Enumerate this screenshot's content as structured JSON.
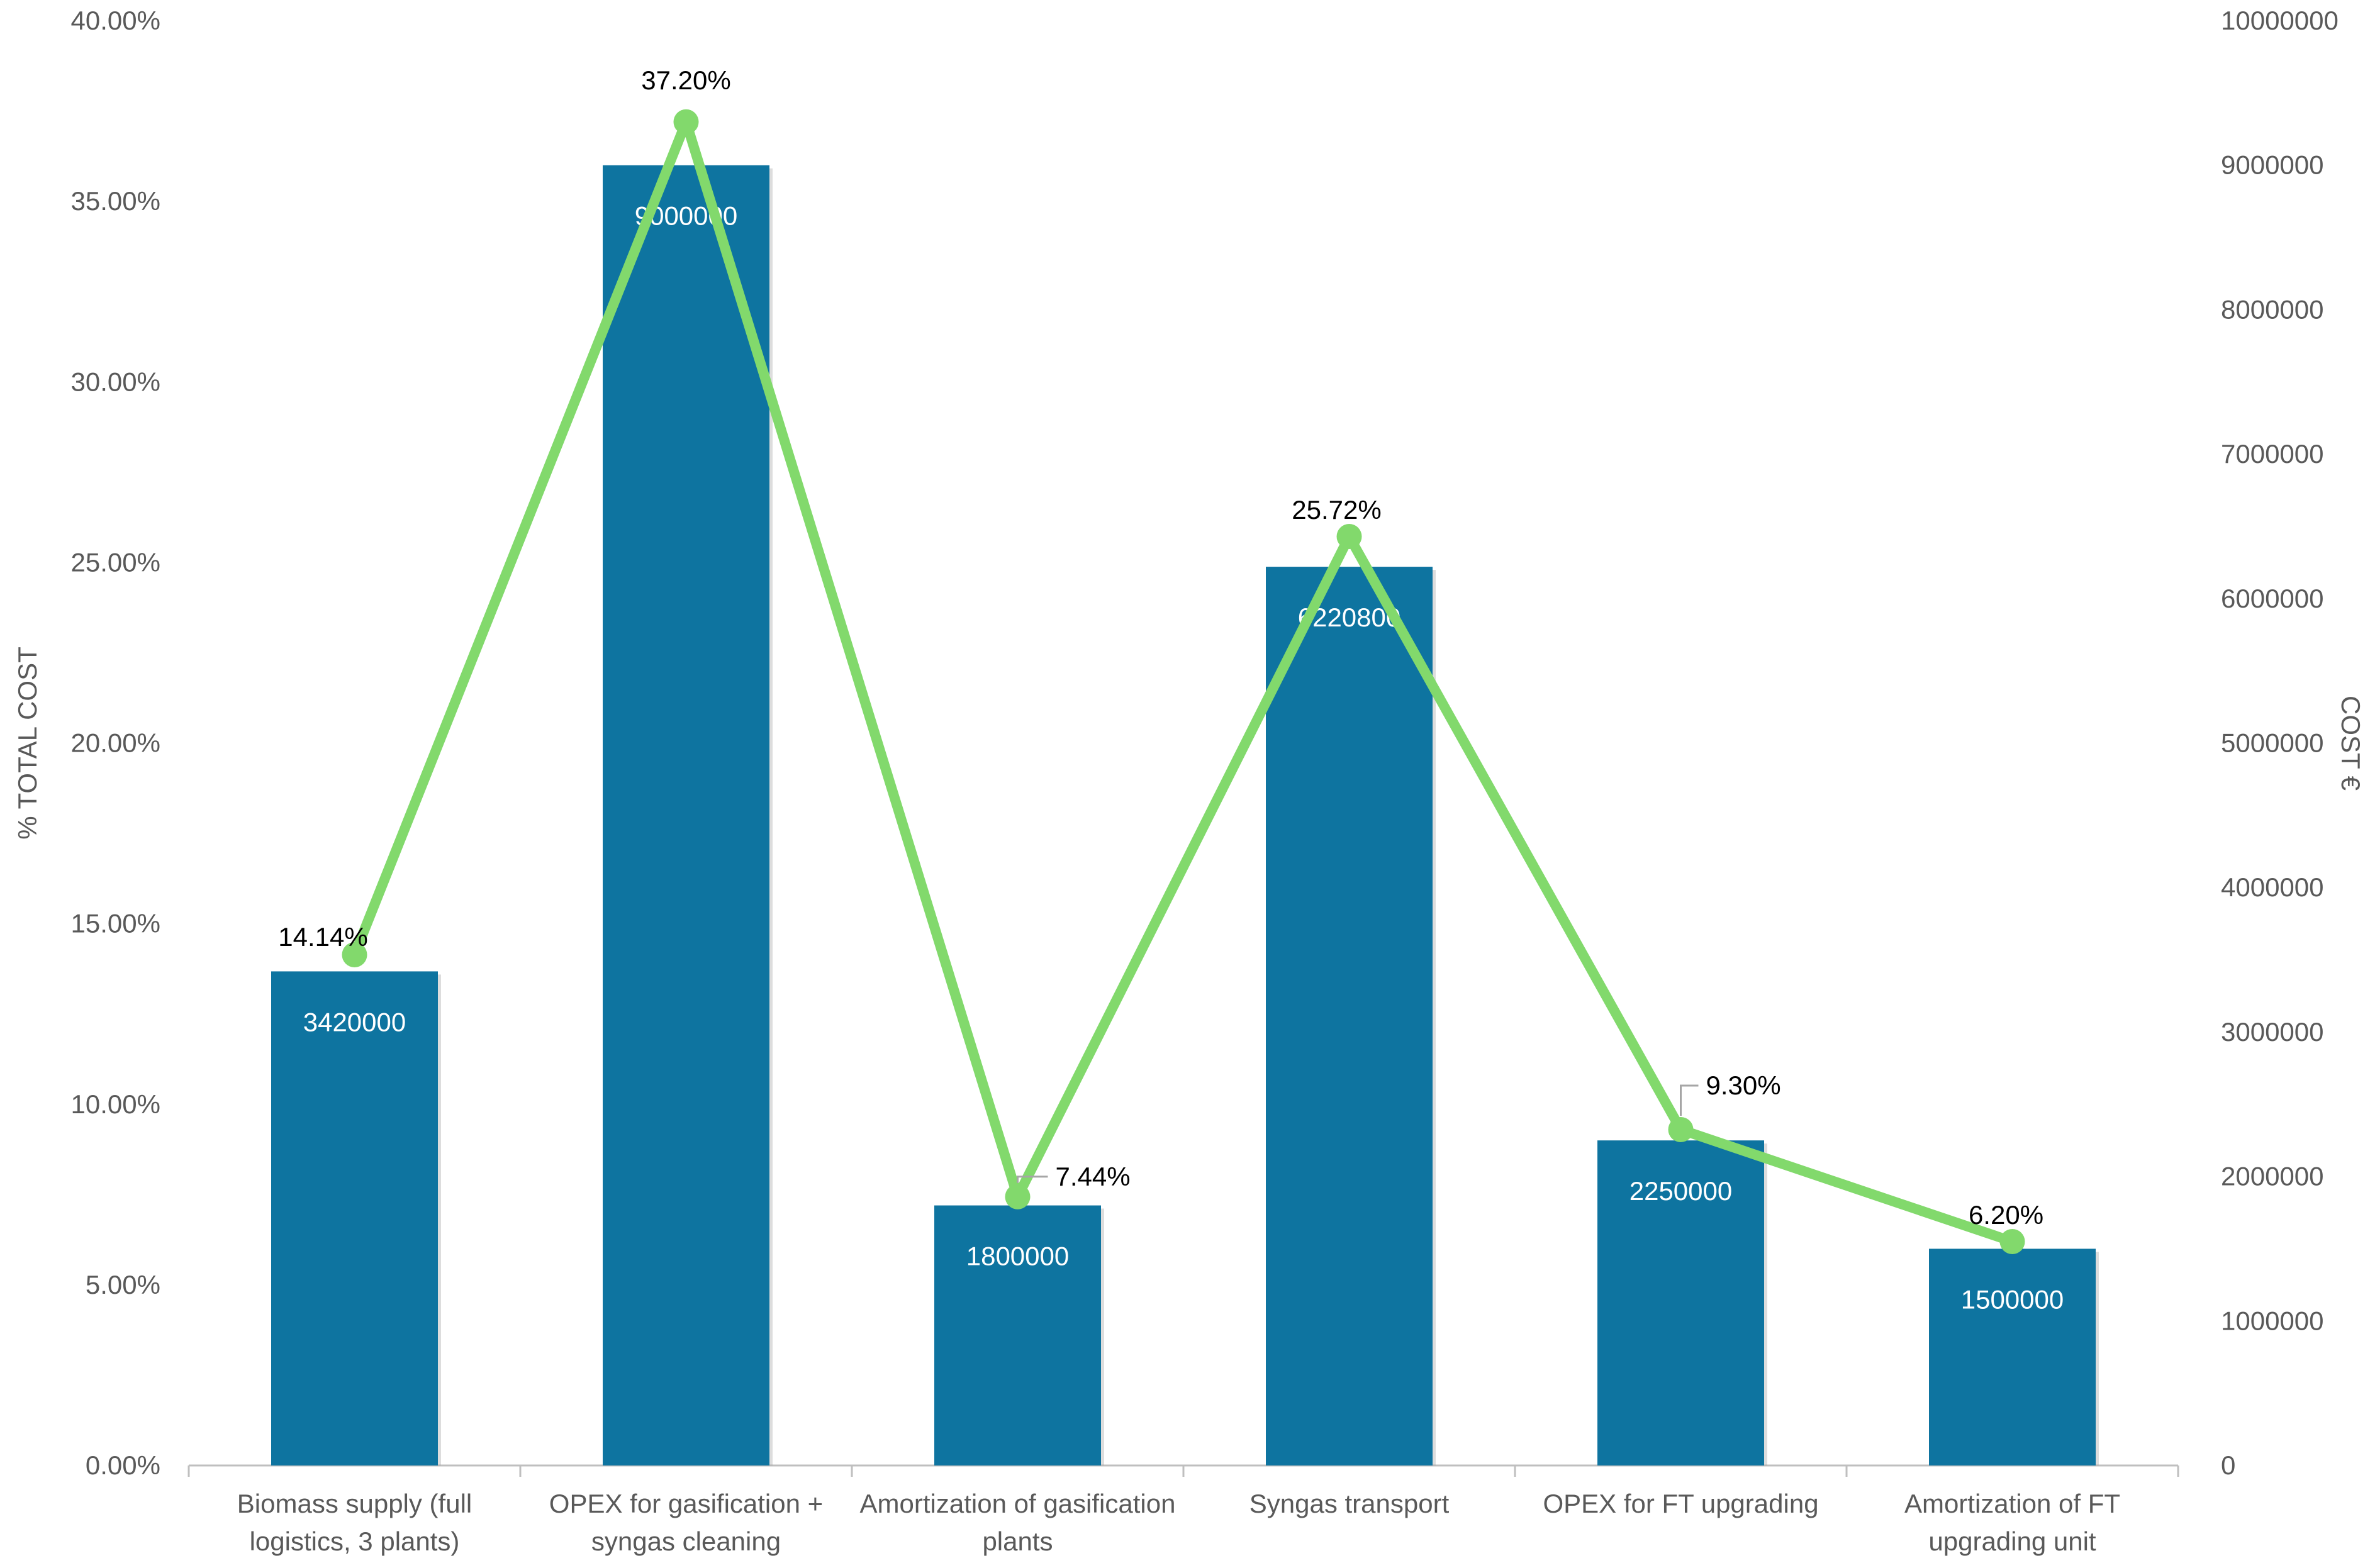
{
  "chart_data": {
    "type": "bar",
    "categories": [
      [
        "Biomass supply (full",
        "logistics, 3 plants)"
      ],
      [
        "OPEX for gasification +",
        "syngas cleaning"
      ],
      [
        "Amortization of gasification",
        "plants"
      ],
      [
        "Syngas transport"
      ],
      [
        "OPEX for FT upgrading"
      ],
      [
        "Amortization of FT",
        "upgrading unit"
      ]
    ],
    "series": [
      {
        "kind": "bar",
        "axis": "right",
        "color": "#0E74A0",
        "values": [
          3420000,
          9000000,
          1800000,
          6220800,
          2250000,
          1500000
        ],
        "labels": [
          "3420000",
          "9000000",
          "1800000",
          "6220800",
          "2250000",
          "1500000"
        ]
      },
      {
        "kind": "line",
        "axis": "left",
        "color": "#82D96C",
        "values": [
          14.14,
          37.2,
          7.44,
          25.72,
          9.3,
          6.2
        ],
        "labels": [
          "14.14%",
          "37.20%",
          "7.44%",
          "25.72%",
          "9.30%",
          "6.20%"
        ]
      }
    ],
    "ylabel": "% TOTAL COST",
    "y2label": "COST €",
    "ylim": [
      0,
      40
    ],
    "y2lim": [
      0,
      10000000
    ],
    "yticks": [
      "0.00%",
      "5.00%",
      "10.00%",
      "15.00%",
      "20.00%",
      "25.00%",
      "30.00%",
      "35.00%",
      "40.00%"
    ],
    "y2ticks": [
      "0",
      "1000000",
      "2000000",
      "3000000",
      "4000000",
      "5000000",
      "6000000",
      "7000000",
      "8000000",
      "9000000",
      "10000000"
    ],
    "grid": false,
    "legend": "none"
  }
}
